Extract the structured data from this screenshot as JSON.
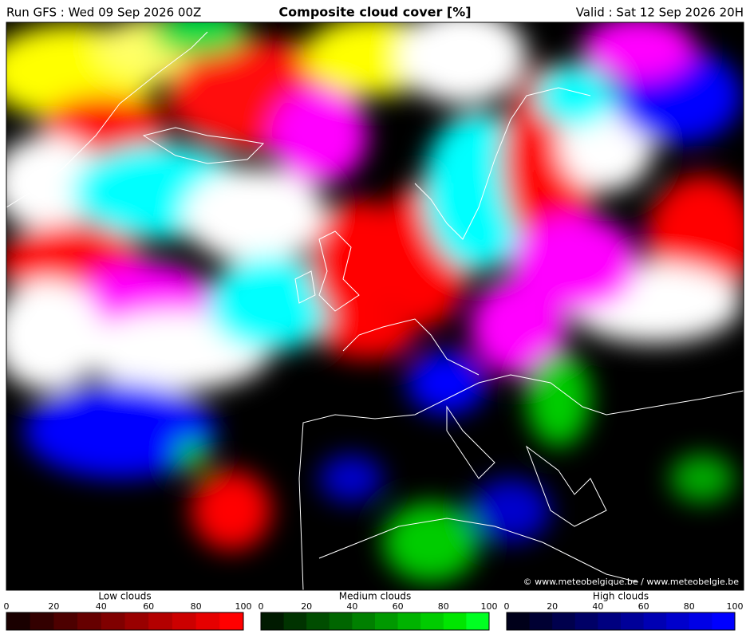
{
  "header": {
    "run": "Run GFS : Wed 09 Sep 2026 00Z",
    "title": "Composite cloud cover [%]",
    "valid": "Valid : Sat 12 Sep 2026 20H"
  },
  "map": {
    "attribution": "© www.meteobelgique.be / www.meteobelgie.be"
  },
  "legends": [
    {
      "title": "Low clouds",
      "ticks": [
        0,
        20,
        40,
        60,
        80,
        100
      ],
      "colors": [
        "#1a0000",
        "#330000",
        "#4d0000",
        "#660000",
        "#800000",
        "#990000",
        "#b30000",
        "#cc0000",
        "#e60000",
        "#ff0000"
      ]
    },
    {
      "title": "Medium clouds",
      "ticks": [
        0,
        20,
        40,
        60,
        80,
        100
      ],
      "colors": [
        "#001a00",
        "#003300",
        "#004d00",
        "#006600",
        "#008000",
        "#009900",
        "#00b300",
        "#00cc00",
        "#00e600",
        "#00ff22"
      ]
    },
    {
      "title": "High clouds",
      "ticks": [
        0,
        20,
        40,
        60,
        80,
        100
      ],
      "colors": [
        "#00001a",
        "#000033",
        "#00004d",
        "#000066",
        "#000080",
        "#000099",
        "#0000b3",
        "#0000cc",
        "#0000e6",
        "#0000ff"
      ]
    }
  ]
}
